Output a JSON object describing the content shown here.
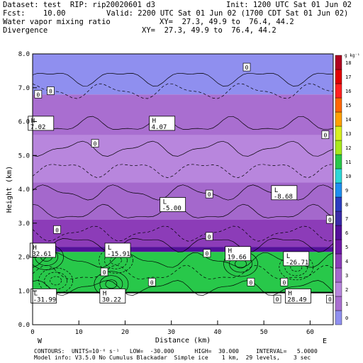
{
  "header": {
    "dataset_line": "Dataset: test  RIP: rip20020601 d3",
    "init_line": "Init: 1200 UTC Sat 01 Jun 02",
    "fcst_line": "Fcst:    10.00",
    "valid_line": "Valid: 2200 UTC Sat 01 Jun 02 (1700 CDT Sat 01 Jun 02)",
    "field1_name": "Water vapor mixing ratio",
    "field1_xy": "XY=  27.3, 49.9 to  76.4, 44.2",
    "field2_name": "Divergence",
    "field2_xy": "XY=  27.3, 49.9 to  76.4, 44.2"
  },
  "footer": {
    "contours_line": "CONTOURS:  UNITS=10⁻⁶ s⁻¹   LOW=  -30.000      HIGH=  30.000     INTERVAL=   5.0000",
    "model_info_line": "Model info: V3.5.0 No Cumulus Blackadar  Simple ice    1 km,  29 levels,    3 sec"
  },
  "chart_data": {
    "type": "heatmap",
    "title": "",
    "xlabel": "Distance (km)",
    "ylabel": "Height (km)",
    "xlim": [
      0,
      65
    ],
    "ylim": [
      0.0,
      8.0
    ],
    "x_ticks": [
      "0",
      "10",
      "20",
      "30",
      "40",
      "50",
      "60"
    ],
    "y_ticks": [
      "0.0",
      "1.0",
      "2.0",
      "3.0",
      "4.0",
      "5.0",
      "6.0",
      "7.0",
      "8.0"
    ],
    "direction_left": "W",
    "direction_right": "E",
    "colorbar": {
      "units": "g kg⁻¹",
      "levels": [
        "0",
        "1",
        "2",
        "3",
        "4",
        "5",
        "6",
        "7",
        "8",
        "9",
        "10",
        "11",
        "12",
        "13",
        "14",
        "15",
        "16",
        "17",
        "18"
      ],
      "colors": [
        "#8f8fef",
        "#a96ed0",
        "#b886dd",
        "#a468cc",
        "#8c3cb8",
        "#6e18a6",
        "#54109a",
        "#3a2aa8",
        "#2a3cc0",
        "#1f8fef",
        "#2dd7d7",
        "#28c84a",
        "#a8e81c",
        "#d8f020",
        "#ffa000",
        "#ff6600",
        "#ff2020",
        "#e00000",
        "#b00020"
      ]
    },
    "moisture_layers": [
      {
        "y_bottom": 6.8,
        "y_top": 8.0,
        "value": 0
      },
      {
        "y_bottom": 5.6,
        "y_top": 6.8,
        "value": 1
      },
      {
        "y_bottom": 4.2,
        "y_top": 5.6,
        "value": 2
      },
      {
        "y_bottom": 3.1,
        "y_top": 4.2,
        "value": 3
      },
      {
        "y_bottom": 2.3,
        "y_top": 3.1,
        "value": 4
      },
      {
        "y_bottom": 2.15,
        "y_top": 2.3,
        "value": 6
      },
      {
        "y_bottom": 0.95,
        "y_top": 2.15,
        "value": 11
      }
    ],
    "extrema_labels": [
      {
        "kind": "H",
        "value": "7.02",
        "x": 1.8,
        "y": 5.95
      },
      {
        "kind": "H",
        "value": "4.07",
        "x": 28.0,
        "y": 5.95
      },
      {
        "kind": "L",
        "value": "-5.00",
        "x": 30.3,
        "y": 3.55
      },
      {
        "kind": "L",
        "value": "-8.68",
        "x": 54.4,
        "y": 3.9
      },
      {
        "kind": "H",
        "value": "32.61",
        "x": 2.2,
        "y": 2.2
      },
      {
        "kind": "L",
        "value": "-15.91",
        "x": 18.4,
        "y": 2.2
      },
      {
        "kind": "H",
        "value": "19.66",
        "x": 44.4,
        "y": 2.1
      },
      {
        "kind": "L",
        "value": "-26.71",
        "x": 57.0,
        "y": 1.95
      },
      {
        "kind": "L",
        "value": "-31.99",
        "x": 2.4,
        "y": 0.85
      },
      {
        "kind": "H",
        "value": "30.22",
        "x": 17.3,
        "y": 0.85
      },
      {
        "kind": "H",
        "value": "28.49",
        "x": 57.4,
        "y": 0.85
      }
    ],
    "zero_labels": [
      {
        "x": 1.2,
        "y": 6.8
      },
      {
        "x": 3.9,
        "y": 6.9
      },
      {
        "x": 46.3,
        "y": 7.6
      },
      {
        "x": 63.3,
        "y": 5.6
      },
      {
        "x": 13.5,
        "y": 5.35
      },
      {
        "x": 38.2,
        "y": 3.85
      },
      {
        "x": 64.3,
        "y": 3.1
      },
      {
        "x": 5.3,
        "y": 2.8
      },
      {
        "x": 38.2,
        "y": 2.6
      },
      {
        "x": 37.7,
        "y": 2.1
      },
      {
        "x": 15.5,
        "y": 1.55
      },
      {
        "x": 25.8,
        "y": 1.25
      },
      {
        "x": 47.2,
        "y": 1.25
      },
      {
        "x": 54.4,
        "y": 1.25
      },
      {
        "x": 52.9,
        "y": 0.75
      },
      {
        "x": 64.3,
        "y": 0.75
      }
    ],
    "contour_interval": 5.0,
    "contour_low": -30.0,
    "contour_high": 30.0
  }
}
